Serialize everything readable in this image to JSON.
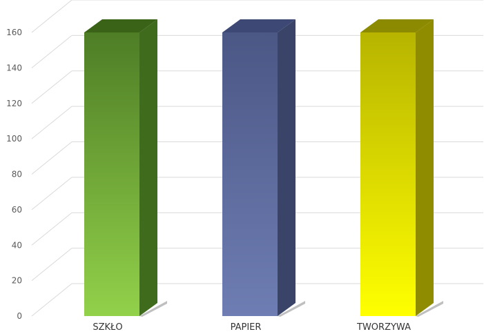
{
  "chart_data": {
    "type": "bar",
    "title": "",
    "xlabel": "",
    "ylabel": "",
    "categories": [
      "SZKŁO",
      "PAPIER",
      "TWORZYWA"
    ],
    "values": [
      160,
      160,
      160
    ],
    "ylim": [
      0,
      160
    ],
    "yticks": [
      "0",
      "20",
      "40",
      "60",
      "80",
      "100",
      "120",
      "140",
      "160"
    ],
    "grid": true,
    "legend": "none",
    "style": "3d-column",
    "colors": [
      {
        "top": "#4e7d26",
        "bottom": "#92d14a",
        "side": "#3f6b1d",
        "cap": "#3a6318"
      },
      {
        "top": "#4b5785",
        "bottom": "#6e7db3",
        "side": "#3a4469",
        "cap": "#3e4875"
      },
      {
        "top": "#b7b400",
        "bottom": "#ffff00",
        "side": "#8f8c00",
        "cap": "#8c8a00"
      }
    ]
  }
}
